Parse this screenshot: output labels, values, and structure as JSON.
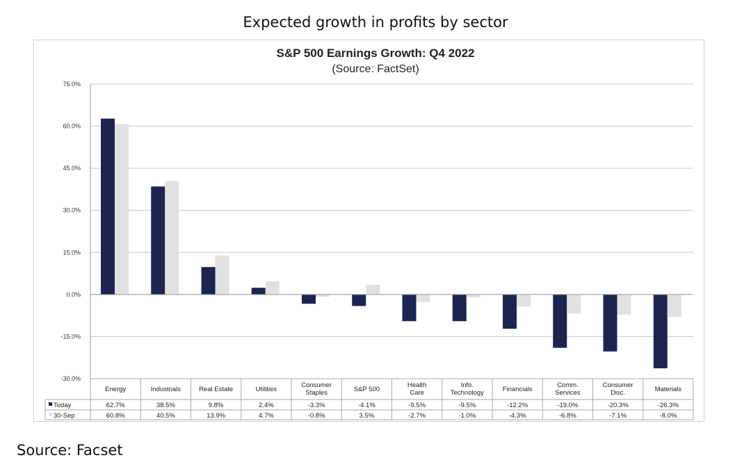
{
  "page_title": "Expected growth in profits by sector",
  "source_note": {
    "label": "Source:",
    "value": "Facset"
  },
  "chart_data": {
    "type": "bar",
    "title": "S&P 500 Earnings Growth: Q4 2022",
    "subtitle": "(Source: FactSet)",
    "xlabel": "",
    "ylabel": "",
    "ylim": [
      -30,
      75
    ],
    "yticks": [
      75,
      60,
      45,
      30,
      15,
      0,
      -15,
      -30
    ],
    "ytick_labels": [
      "75.0%",
      "60.0%",
      "45.0%",
      "30.0%",
      "15.0%",
      "0.0%",
      "-15.0%",
      "-30.0%"
    ],
    "grid": true,
    "legend": "data-table-below",
    "categories": [
      [
        "Energy"
      ],
      [
        "Industrials"
      ],
      [
        "Real Estate"
      ],
      [
        "Utilities"
      ],
      [
        "Consumer",
        "Staples"
      ],
      [
        "S&P 500"
      ],
      [
        "Health",
        "Care"
      ],
      [
        "Info.",
        "Technology"
      ],
      [
        "Financials"
      ],
      [
        "Comm.",
        "Services"
      ],
      [
        "Consumer",
        "Disc."
      ],
      [
        "Materials"
      ]
    ],
    "series": [
      {
        "name": "Today",
        "color": "#1c2551",
        "values": [
          62.7,
          38.5,
          9.8,
          2.4,
          -3.3,
          -4.1,
          -9.5,
          -9.5,
          -12.2,
          -19.0,
          -20.3,
          -26.3
        ],
        "labels": [
          "62.7%",
          "38.5%",
          "9.8%",
          "2.4%",
          "-3.3%",
          "-4.1%",
          "-9.5%",
          "-9.5%",
          "-12.2%",
          "-19.0%",
          "-20.3%",
          "-26.3%"
        ]
      },
      {
        "name": "30-Sep",
        "color": "#e1e1e1",
        "values": [
          60.8,
          40.5,
          13.9,
          4.7,
          -0.8,
          3.5,
          -2.7,
          -1.0,
          -4.3,
          -6.8,
          -7.1,
          -8.0
        ],
        "labels": [
          "60.8%",
          "40.5%",
          "13.9%",
          "4.7%",
          "-0.8%",
          "3.5%",
          "-2.7%",
          "-1.0%",
          "-4.3%",
          "-6.8%",
          "-7.1%",
          "-8.0%"
        ]
      }
    ]
  }
}
